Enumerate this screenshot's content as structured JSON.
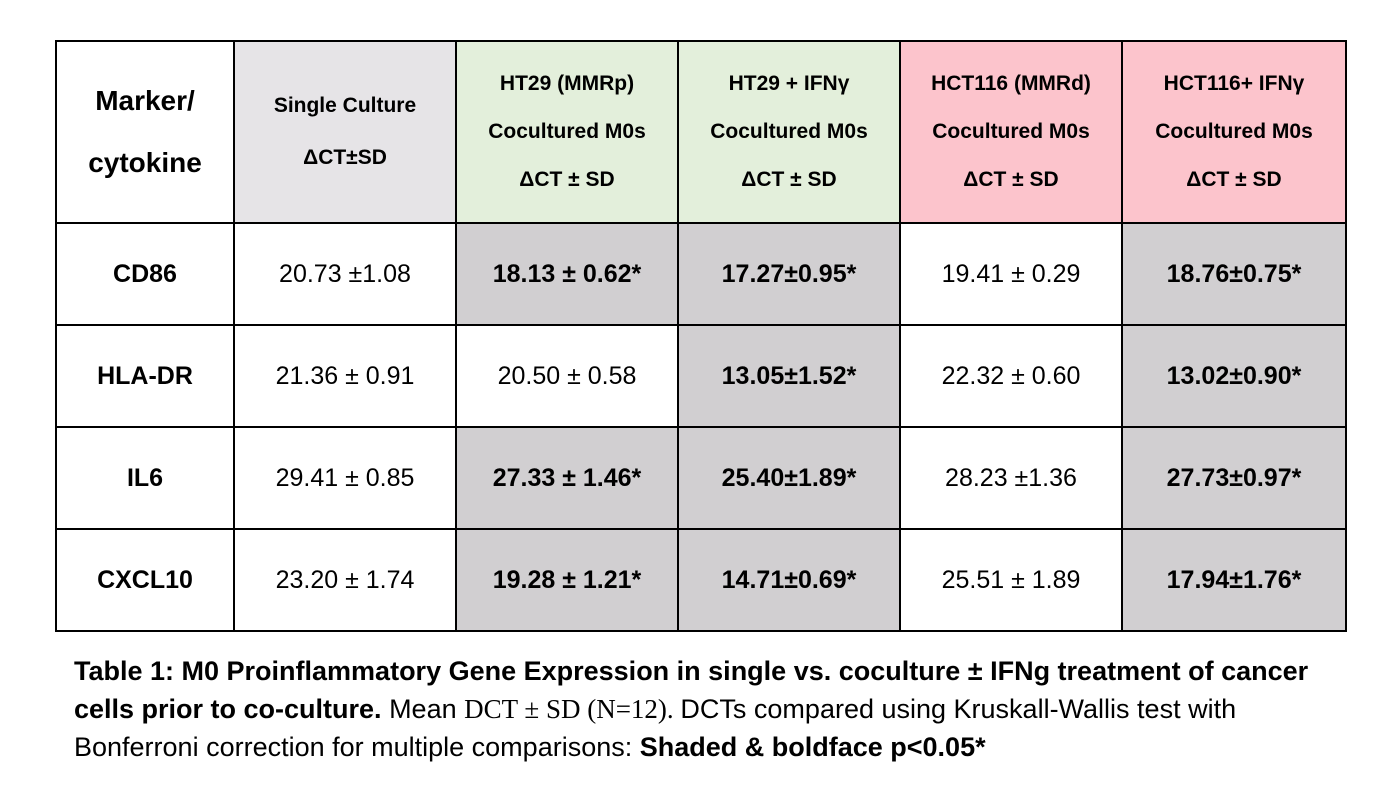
{
  "table": {
    "header": {
      "marker": [
        "Marker/",
        "cytokine"
      ],
      "single": [
        "Single Culture",
        "ΔCT±SD"
      ],
      "ht29": [
        "HT29 (MMRp)",
        "Cocultured M0s",
        "ΔCT ± SD"
      ],
      "ht29_ifn": [
        "HT29 +  IFNγ",
        "Cocultured M0s",
        "ΔCT ± SD"
      ],
      "hct116": [
        "HCT116 (MMRd)",
        "Cocultured M0s",
        "ΔCT ± SD"
      ],
      "hct116_ifn": [
        "HCT116+ IFNγ",
        "Cocultured M0s",
        "ΔCT ± SD"
      ]
    },
    "rows": [
      {
        "marker": "CD86",
        "single": "20.73 ±1.08",
        "ht29": "18.13 ± 0.62*",
        "ht29_ifn": "17.27±0.95*",
        "hct116": "19.41 ± 0.29",
        "hct116_ifn": "18.76±0.75*"
      },
      {
        "marker": "HLA-DR",
        "single": "21.36 ± 0.91",
        "ht29": "20.50 ± 0.58",
        "ht29_ifn": "13.05±1.52*",
        "hct116": "22.32 ± 0.60",
        "hct116_ifn": "13.02±0.90*"
      },
      {
        "marker": "IL6",
        "single": "29.41 ± 0.85",
        "ht29": "27.33 ± 1.46*",
        "ht29_ifn": "25.40±1.89*",
        "hct116": "28.23 ±1.36",
        "hct116_ifn": "27.73±0.97*"
      },
      {
        "marker": "CXCL10",
        "single": "23.20 ± 1.74",
        "ht29": "19.28 ± 1.21*",
        "ht29_ifn": "14.71±0.69*",
        "hct116": "25.51 ± 1.89",
        "hct116_ifn": "17.94±1.76*"
      }
    ]
  },
  "caption": {
    "title": "Table 1: M0 Proinflammatory Gene Expression in single vs. coculture ± IFNg treatment of cancer cells prior to co-culture.",
    "body_1": " Mean ",
    "dct": "DCT",
    "body_2": " ± SD (N=12). ",
    "body_3": "DCTs compared using Kruskall-Wallis test with Bonferroni correction for multiple comparisons: ",
    "emphasis": "Shaded & boldface p<0.05*"
  },
  "colors": {
    "single_header": "#e6e4e7",
    "ht29_header": "#e3efdb",
    "hct116_header": "#fcc4cc",
    "significant_cell": "#d1cfd1"
  }
}
